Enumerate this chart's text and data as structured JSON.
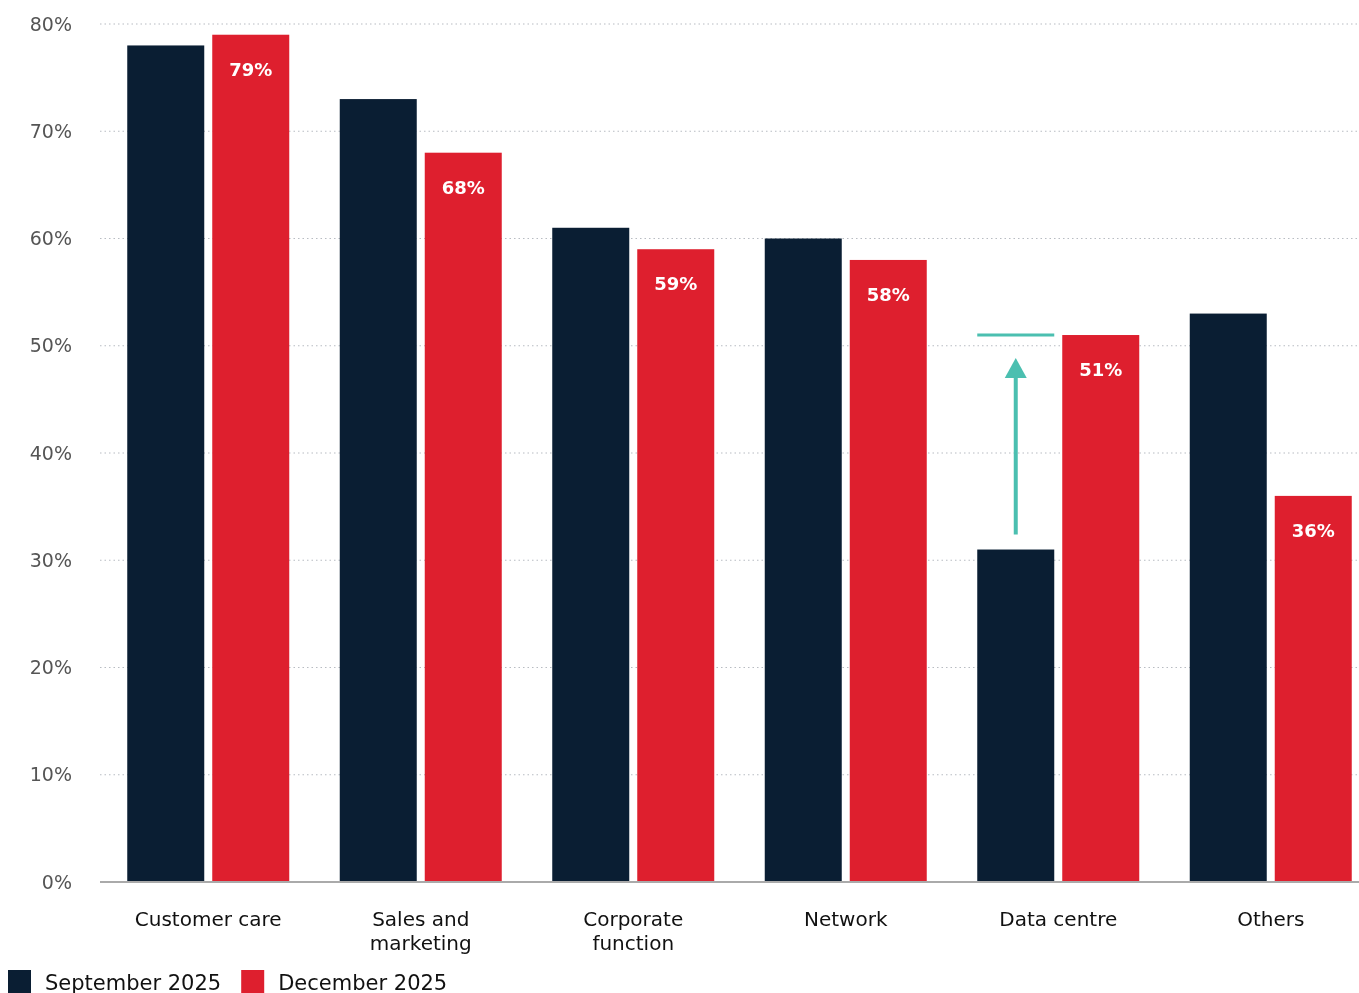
{
  "chart_data": {
    "type": "bar",
    "categories": [
      "Customer care",
      "Sales and marketing",
      "Corporate function",
      "Network",
      "Data centre",
      "Others"
    ],
    "series": [
      {
        "name": "September 2025",
        "color": "#0a1e33",
        "values": [
          78,
          73,
          61,
          60,
          31,
          53
        ]
      },
      {
        "name": "December 2025",
        "color": "#de1f2e",
        "values": [
          79,
          68,
          59,
          58,
          51,
          36
        ],
        "value_labels": [
          "79%",
          "68%",
          "59%",
          "58%",
          "51%",
          "36%"
        ]
      }
    ],
    "ylim": [
      0,
      80
    ],
    "yticks": [
      {
        "value": 0,
        "label": "0%"
      },
      {
        "value": 10,
        "label": "10%"
      },
      {
        "value": 20,
        "label": "20%"
      },
      {
        "value": 30,
        "label": "30%"
      },
      {
        "value": 40,
        "label": "40%"
      },
      {
        "value": 50,
        "label": "50%"
      },
      {
        "value": 60,
        "label": "60%"
      },
      {
        "value": 70,
        "label": "70%"
      },
      {
        "value": 80,
        "label": "80%"
      }
    ],
    "grid": "y",
    "legend": "bottom left"
  }
}
